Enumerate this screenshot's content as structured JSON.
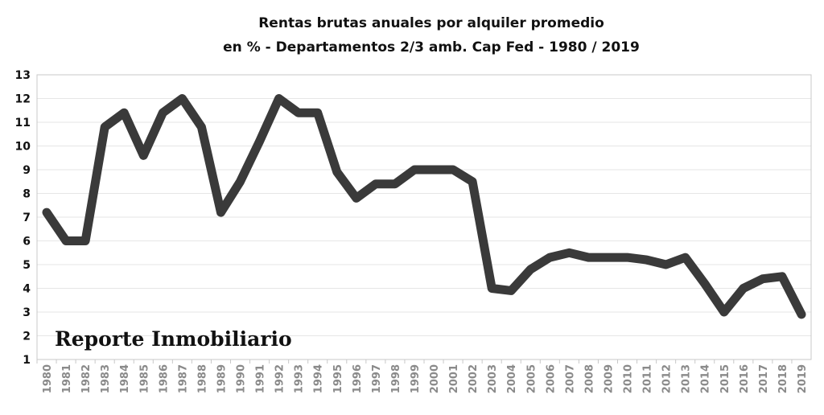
{
  "chart_data": {
    "type": "line",
    "title_line1": "Rentas brutas anuales por alquiler promedio",
    "title_line2": "en % - Departamentos 2/3 amb. Cap Fed - 1980 / 2019",
    "xlabel": "",
    "ylabel": "",
    "ylim": [
      1,
      13
    ],
    "yticks": [
      "1",
      "2",
      "3",
      "4",
      "5",
      "6",
      "7",
      "8",
      "9",
      "10",
      "11",
      "12",
      "13"
    ],
    "grid": true,
    "line_color": "#3a3a3a",
    "watermark": "Reporte Inmobiliario",
    "categories": [
      "1980",
      "1981",
      "1982",
      "1983",
      "1984",
      "1985",
      "1986",
      "1987",
      "1988",
      "1989",
      "1990",
      "1991",
      "1992",
      "1993",
      "1994",
      "1995",
      "1996",
      "1997",
      "1998",
      "1999",
      "2000",
      "2001",
      "2002",
      "2003",
      "2004",
      "2005",
      "2006",
      "2007",
      "2008",
      "2009",
      "2010",
      "2011",
      "2012",
      "2013",
      "2014",
      "2015",
      "2016",
      "2017",
      "2018",
      "2019"
    ],
    "values": [
      7.2,
      6.0,
      6.0,
      10.8,
      11.4,
      9.6,
      11.4,
      12.0,
      10.8,
      7.2,
      8.5,
      10.2,
      12.0,
      11.4,
      11.4,
      8.9,
      7.8,
      8.4,
      8.4,
      9.0,
      9.0,
      9.0,
      8.5,
      4.0,
      3.9,
      4.8,
      5.3,
      5.5,
      5.3,
      5.3,
      5.3,
      5.2,
      5.0,
      5.3,
      4.2,
      3.0,
      4.0,
      4.4,
      4.5,
      2.9
    ]
  }
}
